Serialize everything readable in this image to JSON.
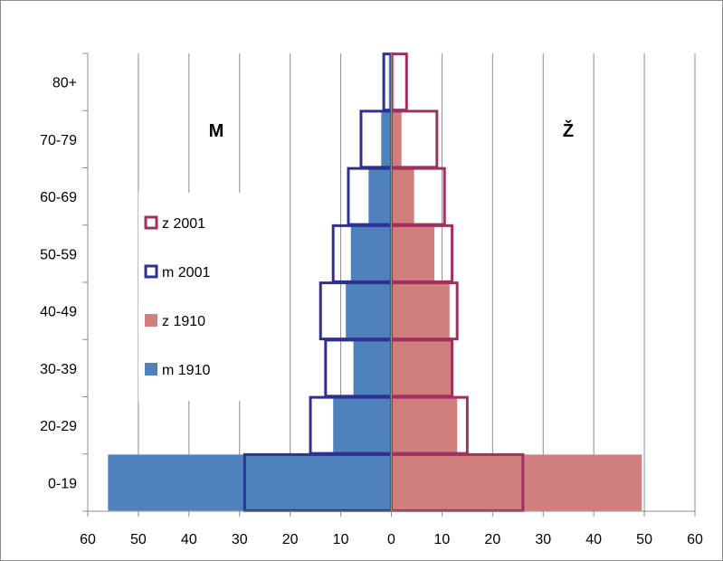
{
  "chart_data": {
    "type": "bar",
    "orientation": "horizontal",
    "subtype": "population-pyramid",
    "categories": [
      "0-19",
      "20-29",
      "30-39",
      "40-49",
      "50-59",
      "60-69",
      "70-79",
      "80+"
    ],
    "series": [
      {
        "name": "m 1910",
        "side": "left",
        "style": "filled",
        "color": "#4f81bd",
        "values": [
          56,
          11.5,
          7.5,
          9,
          8,
          4.5,
          2,
          0.5
        ]
      },
      {
        "name": "z 1910",
        "side": "right",
        "style": "filled",
        "color": "#d07f7d",
        "values": [
          49.5,
          13,
          12,
          11.5,
          8.5,
          4.5,
          2,
          0.5
        ]
      },
      {
        "name": "m 2001",
        "side": "left",
        "style": "outline",
        "color": "#2e3192",
        "values": [
          29,
          16,
          13,
          14,
          11.5,
          8.5,
          6,
          1.5
        ]
      },
      {
        "name": "z 2001",
        "side": "right",
        "style": "outline",
        "color": "#a03060",
        "values": [
          26,
          15,
          12,
          13,
          12,
          10.5,
          9,
          3
        ]
      }
    ],
    "xlim": [
      -60,
      60
    ],
    "xticks": [
      60,
      50,
      40,
      30,
      20,
      10,
      0,
      10,
      20,
      30,
      40,
      50,
      60
    ],
    "left_label": "M",
    "right_label": "Ž",
    "grid": "vertical",
    "legend": [
      "z  2001",
      "m 2001",
      "z  1910",
      "m 1910"
    ],
    "legend_position": "left-middle"
  }
}
